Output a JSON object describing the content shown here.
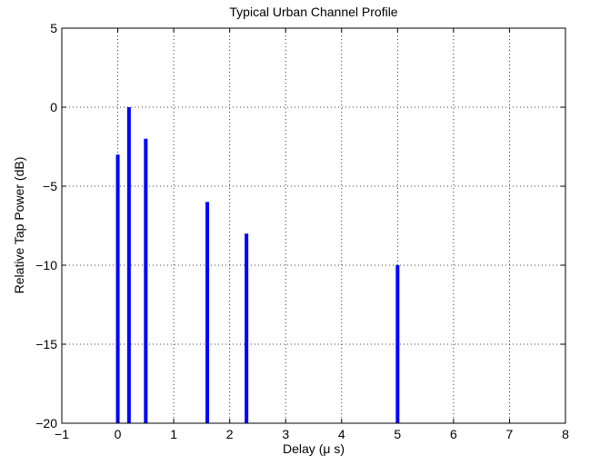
{
  "chart_data": {
    "type": "bar",
    "title": "Typical Urban Channel Profile",
    "xlabel": "Delay (μ s)",
    "ylabel": "Relative Tap Power (dB)",
    "xlim": [
      -1,
      8
    ],
    "ylim": [
      -20,
      5
    ],
    "xticks": [
      "−1",
      "0",
      "1",
      "2",
      "3",
      "4",
      "5",
      "6",
      "7",
      "8"
    ],
    "yticks": [
      "−20",
      "−15",
      "−10",
      "−5",
      "0",
      "5"
    ],
    "grid": true,
    "bar_color": "#0000ff",
    "points": [
      {
        "x": 0.0,
        "y": -3
      },
      {
        "x": 0.2,
        "y": 0
      },
      {
        "x": 0.5,
        "y": -2
      },
      {
        "x": 1.6,
        "y": -6
      },
      {
        "x": 2.3,
        "y": -8
      },
      {
        "x": 5.0,
        "y": -10
      }
    ]
  }
}
